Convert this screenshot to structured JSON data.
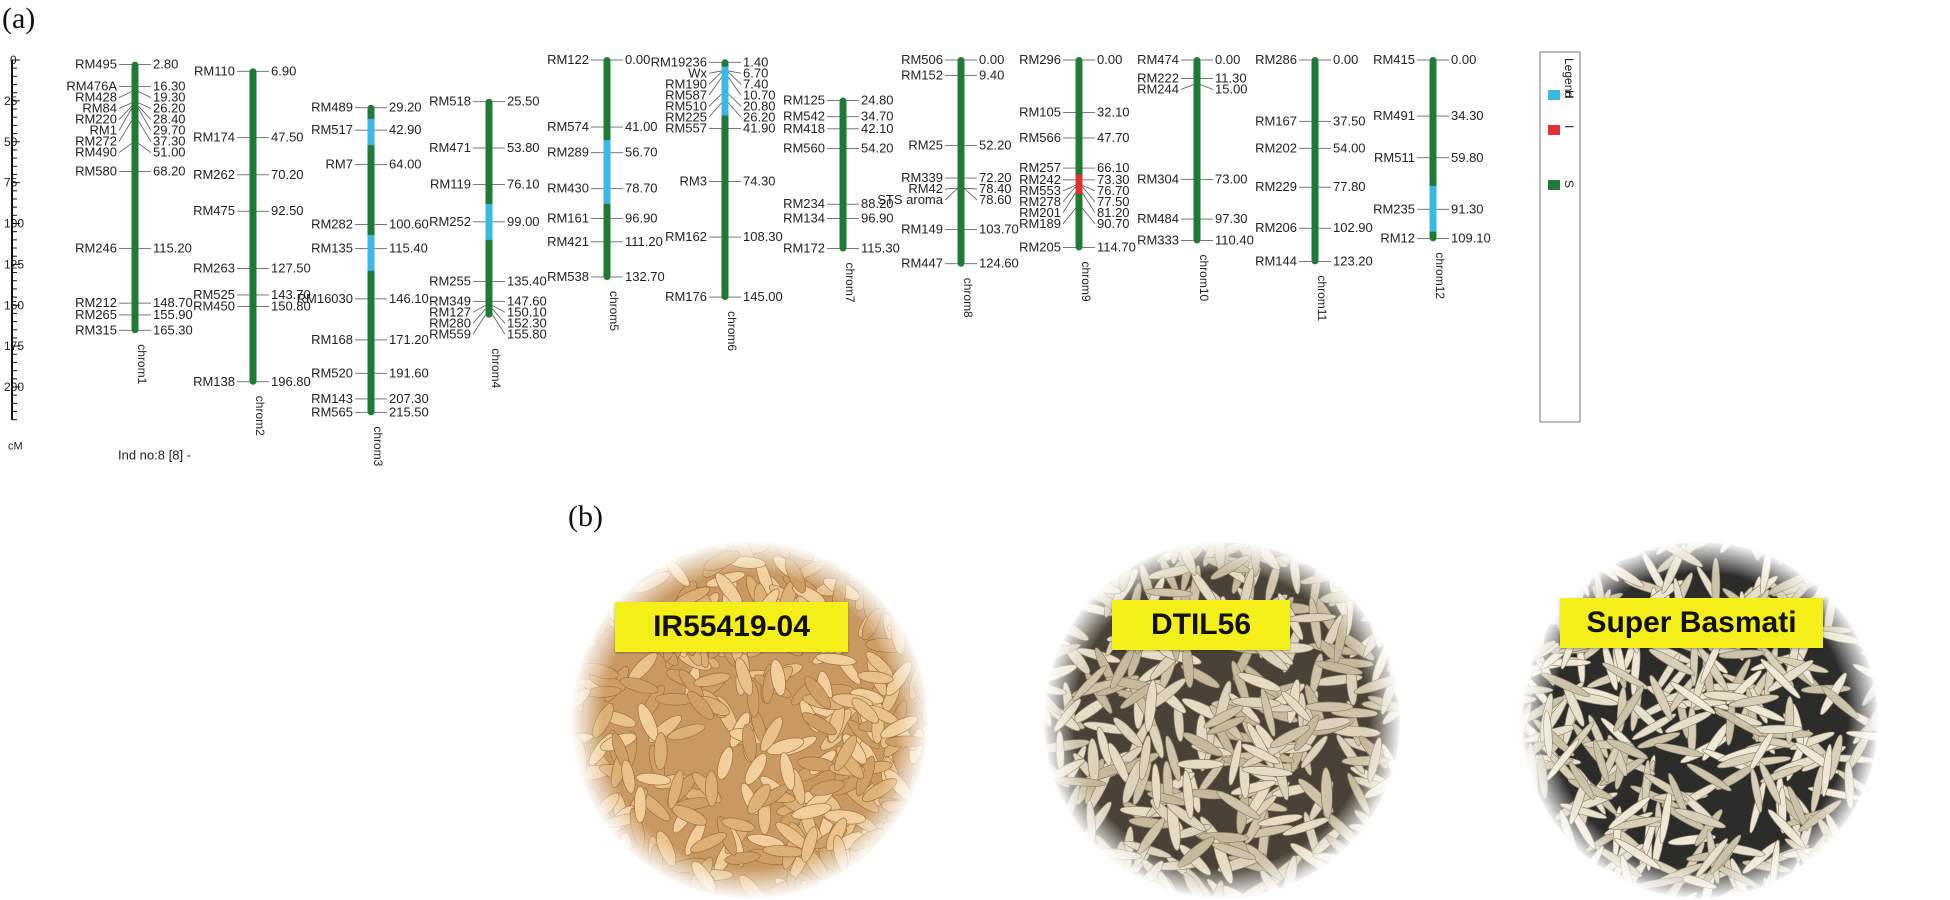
{
  "panel_labels": {
    "a": "(a)",
    "b": "(b)"
  },
  "axis": {
    "unit": "cM",
    "ticks": [
      0,
      25,
      50,
      75,
      100,
      125,
      150,
      175,
      200
    ]
  },
  "individual": "Ind no:8 [8] -",
  "legend": {
    "title": "Legend",
    "items": [
      {
        "key": "H",
        "color": "#3ab8e8"
      },
      {
        "key": "I",
        "color": "#e03030"
      },
      {
        "key": "S",
        "color": "#1e7a35"
      }
    ]
  },
  "colors": {
    "S": "#1e7a35",
    "H": "#3ab8e8",
    "I": "#e03030",
    "tag": "#f4ef18"
  },
  "chromosomes": [
    {
      "name": "chrom1",
      "start": 2.8,
      "end": 165.3,
      "segments": [],
      "markers": [
        {
          "name": "RM495",
          "pos": "2.80"
        },
        {
          "name": "RM476A",
          "pos": "16.30"
        },
        {
          "name": "RM428",
          "pos": "19.30"
        },
        {
          "name": "RM84",
          "pos": "26.20"
        },
        {
          "name": "RM220",
          "pos": "28.40"
        },
        {
          "name": "RM1",
          "pos": "29.70"
        },
        {
          "name": "RM272",
          "pos": "37.30"
        },
        {
          "name": "RM490",
          "pos": "51.00"
        },
        {
          "name": "RM580",
          "pos": "68.20"
        },
        {
          "name": "RM246",
          "pos": "115.20"
        },
        {
          "name": "RM212",
          "pos": "148.70"
        },
        {
          "name": "RM265",
          "pos": "155.90"
        },
        {
          "name": "RM315",
          "pos": "165.30"
        }
      ]
    },
    {
      "name": "chrom2",
      "start": 6.9,
      "end": 196.8,
      "segments": [],
      "markers": [
        {
          "name": "RM110",
          "pos": "6.90"
        },
        {
          "name": "RM174",
          "pos": "47.50"
        },
        {
          "name": "RM262",
          "pos": "70.20"
        },
        {
          "name": "RM475",
          "pos": "92.50"
        },
        {
          "name": "RM263",
          "pos": "127.50"
        },
        {
          "name": "RM525",
          "pos": "143.70"
        },
        {
          "name": "RM450",
          "pos": "150.80"
        },
        {
          "name": "RM138",
          "pos": "196.80"
        }
      ]
    },
    {
      "name": "chrom3",
      "start": 29.2,
      "end": 215.5,
      "segments": [
        {
          "from": 36,
          "to": 52,
          "type": "H"
        },
        {
          "from": 107,
          "to": 129,
          "type": "H"
        }
      ],
      "markers": [
        {
          "name": "RM489",
          "pos": "29.20"
        },
        {
          "name": "RM517",
          "pos": "42.90"
        },
        {
          "name": "RM7",
          "pos": "64.00"
        },
        {
          "name": "RM282",
          "pos": "100.60"
        },
        {
          "name": "RM135",
          "pos": "115.40"
        },
        {
          "name": "RM16030",
          "pos": "146.10"
        },
        {
          "name": "RM168",
          "pos": "171.20"
        },
        {
          "name": "RM520",
          "pos": "191.60"
        },
        {
          "name": "RM143",
          "pos": "207.30"
        },
        {
          "name": "RM565",
          "pos": "215.50"
        }
      ]
    },
    {
      "name": "chrom4",
      "start": 25.5,
      "end": 155.8,
      "segments": [
        {
          "from": 88,
          "to": 110,
          "type": "H"
        }
      ],
      "markers": [
        {
          "name": "RM518",
          "pos": "25.50"
        },
        {
          "name": "RM471",
          "pos": "53.80"
        },
        {
          "name": "RM119",
          "pos": "76.10"
        },
        {
          "name": "RM252",
          "pos": "99.00"
        },
        {
          "name": "RM255",
          "pos": "135.40"
        },
        {
          "name": "RM349",
          "pos": "147.60"
        },
        {
          "name": "RM127",
          "pos": "150.10"
        },
        {
          "name": "RM280",
          "pos": "152.30"
        },
        {
          "name": "RM559",
          "pos": "155.80"
        }
      ]
    },
    {
      "name": "chrom5",
      "start": 0,
      "end": 132.7,
      "segments": [
        {
          "from": 49,
          "to": 88,
          "type": "H"
        }
      ],
      "markers": [
        {
          "name": "RM122",
          "pos": "0.00"
        },
        {
          "name": "RM574",
          "pos": "41.00"
        },
        {
          "name": "RM289",
          "pos": "56.70"
        },
        {
          "name": "RM430",
          "pos": "78.70"
        },
        {
          "name": "RM161",
          "pos": "96.90"
        },
        {
          "name": "RM421",
          "pos": "111.20"
        },
        {
          "name": "RM538",
          "pos": "132.70"
        }
      ]
    },
    {
      "name": "chrom6",
      "start": 1.4,
      "end": 145.0,
      "segments": [
        {
          "from": 4,
          "to": 34,
          "type": "H"
        }
      ],
      "markers": [
        {
          "name": "RM19236",
          "pos": "1.40"
        },
        {
          "name": "Wx",
          "pos": "6.70"
        },
        {
          "name": "RM190",
          "pos": "7.40"
        },
        {
          "name": "RM587",
          "pos": "10.70"
        },
        {
          "name": "RM510",
          "pos": "20.80"
        },
        {
          "name": "RM225",
          "pos": "26.20"
        },
        {
          "name": "RM557",
          "pos": "41.90"
        },
        {
          "name": "RM3",
          "pos": "74.30"
        },
        {
          "name": "RM162",
          "pos": "108.30"
        },
        {
          "name": "RM176",
          "pos": "145.00"
        }
      ]
    },
    {
      "name": "chrom7",
      "start": 24.8,
      "end": 115.3,
      "segments": [],
      "markers": [
        {
          "name": "RM125",
          "pos": "24.80"
        },
        {
          "name": "RM542",
          "pos": "34.70"
        },
        {
          "name": "RM418",
          "pos": "42.10"
        },
        {
          "name": "RM560",
          "pos": "54.20"
        },
        {
          "name": "RM234",
          "pos": "88.20"
        },
        {
          "name": "RM134",
          "pos": "96.90"
        },
        {
          "name": "RM172",
          "pos": "115.30"
        }
      ]
    },
    {
      "name": "chrom8",
      "start": 0,
      "end": 124.6,
      "segments": [],
      "markers": [
        {
          "name": "RM506",
          "pos": "0.00"
        },
        {
          "name": "RM152",
          "pos": "9.40"
        },
        {
          "name": "RM25",
          "pos": "52.20"
        },
        {
          "name": "RM339",
          "pos": "72.20"
        },
        {
          "name": "RM42",
          "pos": "78.40"
        },
        {
          "name": "STS aroma",
          "pos": "78.60"
        },
        {
          "name": "RM149",
          "pos": "103.70"
        },
        {
          "name": "RM447",
          "pos": "124.60"
        }
      ]
    },
    {
      "name": "chrom9",
      "start": 0,
      "end": 114.7,
      "segments": [
        {
          "from": 70,
          "to": 82,
          "type": "I"
        }
      ],
      "markers": [
        {
          "name": "RM296",
          "pos": "0.00"
        },
        {
          "name": "RM105",
          "pos": "32.10"
        },
        {
          "name": "RM566",
          "pos": "47.70"
        },
        {
          "name": "RM257",
          "pos": "66.10"
        },
        {
          "name": "RM242",
          "pos": "73.30"
        },
        {
          "name": "RM553",
          "pos": "76.70"
        },
        {
          "name": "RM278",
          "pos": "77.50"
        },
        {
          "name": "RM201",
          "pos": "81.20"
        },
        {
          "name": "RM189",
          "pos": "90.70"
        },
        {
          "name": "RM205",
          "pos": "114.70"
        }
      ]
    },
    {
      "name": "chrom10",
      "start": 0,
      "end": 110.4,
      "segments": [],
      "markers": [
        {
          "name": "RM474",
          "pos": "0.00"
        },
        {
          "name": "RM222",
          "pos": "11.30"
        },
        {
          "name": "RM244",
          "pos": "15.00"
        },
        {
          "name": "RM304",
          "pos": "73.00"
        },
        {
          "name": "RM484",
          "pos": "97.30"
        },
        {
          "name": "RM333",
          "pos": "110.40"
        }
      ]
    },
    {
      "name": "chrom11",
      "start": 0,
      "end": 123.2,
      "segments": [],
      "markers": [
        {
          "name": "RM286",
          "pos": "0.00"
        },
        {
          "name": "RM167",
          "pos": "37.50"
        },
        {
          "name": "RM202",
          "pos": "54.00"
        },
        {
          "name": "RM229",
          "pos": "77.80"
        },
        {
          "name": "RM206",
          "pos": "102.90"
        },
        {
          "name": "RM144",
          "pos": "123.20"
        }
      ]
    },
    {
      "name": "chrom12",
      "start": 0,
      "end": 109.1,
      "segments": [
        {
          "from": 77,
          "to": 105,
          "type": "H"
        }
      ],
      "markers": [
        {
          "name": "RM415",
          "pos": "0.00"
        },
        {
          "name": "RM491",
          "pos": "34.30"
        },
        {
          "name": "RM511",
          "pos": "59.80"
        },
        {
          "name": "RM235",
          "pos": "91.30"
        },
        {
          "name": "RM12",
          "pos": "109.10"
        }
      ]
    }
  ],
  "varieties": [
    "IR55419-04",
    "DTIL56",
    "Super Basmati"
  ]
}
